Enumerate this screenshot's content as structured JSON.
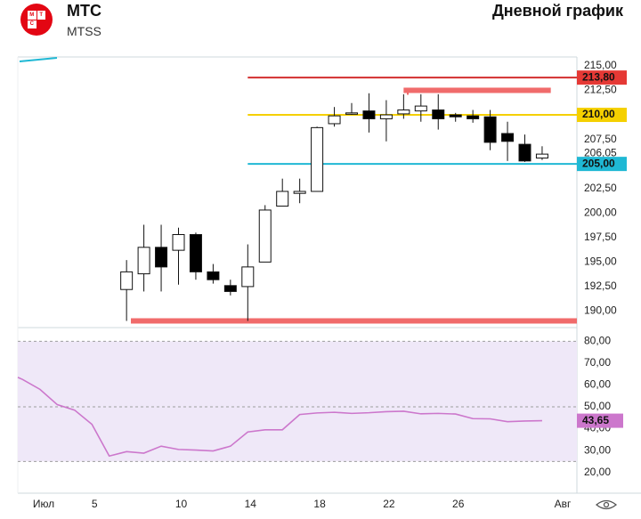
{
  "header": {
    "title": "МТС",
    "ticker": "MTSS",
    "headline": "Дневной график",
    "logo_letters": [
      "М",
      "Т",
      "С"
    ]
  },
  "colors": {
    "bull_candle": "#ffffff",
    "bear_candle": "#000000",
    "rsi_line": "#cc77cc",
    "rsi_band": "#efe8f8",
    "resistance_red": "#d32f2f",
    "highlight_red": "#f06b6b",
    "yellow_line": "#f5d000",
    "cyan_line": "#1fb8d4"
  },
  "chart_data": [
    {
      "type": "candlestick",
      "title": "",
      "ylim": [
        188.5,
        215.9
      ],
      "y_ticks": [
        "215,00",
        "212,50",
        "210,00",
        "207,50",
        "206,05",
        "205,00",
        "202,50",
        "200,00",
        "197,50",
        "195,00",
        "192,50",
        "190,00"
      ],
      "y_tick_values": [
        215.0,
        212.5,
        210.0,
        207.5,
        206.05,
        205.0,
        202.5,
        200.0,
        197.5,
        195.0,
        192.5,
        190.0
      ],
      "x_ticks": [
        "Июл",
        "5",
        "10",
        "14",
        "18",
        "22",
        "26",
        "Авг"
      ],
      "x_tick_days": [
        0,
        5,
        10,
        14,
        18,
        22,
        26,
        31
      ],
      "candles": [
        {
          "day": 7,
          "open": 192.2,
          "high": 195.2,
          "low": 189.0,
          "close": 194.0
        },
        {
          "day": 8,
          "open": 193.8,
          "high": 198.8,
          "low": 192.0,
          "close": 196.5
        },
        {
          "day": 9,
          "open": 196.5,
          "high": 198.8,
          "low": 192.0,
          "close": 194.5
        },
        {
          "day": 10,
          "open": 196.2,
          "high": 198.5,
          "low": 192.7,
          "close": 197.8
        },
        {
          "day": 11,
          "open": 197.8,
          "high": 198.0,
          "low": 193.2,
          "close": 194.0
        },
        {
          "day": 12,
          "open": 194.0,
          "high": 194.8,
          "low": 192.8,
          "close": 193.2
        },
        {
          "day": 13,
          "open": 192.6,
          "high": 193.2,
          "low": 191.6,
          "close": 192.0
        },
        {
          "day": 14,
          "open": 192.5,
          "high": 196.8,
          "low": 189.0,
          "close": 194.5
        },
        {
          "day": 15,
          "open": 195.0,
          "high": 200.8,
          "low": 195.0,
          "close": 200.3
        },
        {
          "day": 16,
          "open": 200.7,
          "high": 203.5,
          "low": 200.7,
          "close": 202.2
        },
        {
          "day": 17,
          "open": 202.0,
          "high": 203.5,
          "low": 201.0,
          "close": 202.2
        },
        {
          "day": 18,
          "open": 202.2,
          "high": 208.8,
          "low": 202.2,
          "close": 208.7
        },
        {
          "day": 19,
          "open": 209.1,
          "high": 210.8,
          "low": 208.8,
          "close": 209.9
        },
        {
          "day": 20,
          "open": 210.1,
          "high": 211.2,
          "low": 210.0,
          "close": 210.2
        },
        {
          "day": 21,
          "open": 210.4,
          "high": 212.2,
          "low": 208.2,
          "close": 209.6
        },
        {
          "day": 22,
          "open": 209.6,
          "high": 211.5,
          "low": 207.3,
          "close": 210.0
        },
        {
          "day": 23,
          "open": 210.1,
          "high": 212.1,
          "low": 209.6,
          "close": 210.5
        },
        {
          "day": 24,
          "open": 210.4,
          "high": 212.1,
          "low": 209.3,
          "close": 210.9
        },
        {
          "day": 25,
          "open": 210.5,
          "high": 212.1,
          "low": 208.5,
          "close": 209.6
        },
        {
          "day": 26,
          "open": 210.0,
          "high": 210.2,
          "low": 209.3,
          "close": 209.8
        },
        {
          "day": 27,
          "open": 209.9,
          "high": 210.5,
          "low": 209.2,
          "close": 209.6
        },
        {
          "day": 28,
          "open": 209.8,
          "high": 210.5,
          "low": 206.4,
          "close": 207.2
        },
        {
          "day": 29,
          "open": 208.1,
          "high": 209.3,
          "low": 205.3,
          "close": 207.3
        },
        {
          "day": 30,
          "open": 207.0,
          "high": 208.0,
          "low": 205.2,
          "close": 205.3
        },
        {
          "day": 31,
          "open": 205.6,
          "high": 206.8,
          "low": 205.4,
          "close": 206.0
        }
      ],
      "levels": [
        {
          "name": "213,80",
          "value": 213.8,
          "from_day": 14,
          "to_day": 32,
          "color": "#d32f2f",
          "tag_bg": "#e53935",
          "tag_fg": "#ffffff",
          "style": "line"
        },
        {
          "name": "210,00",
          "value": 210.0,
          "from_day": 14,
          "to_day": 32,
          "color": "#f5d000",
          "tag_bg": "#f5d000",
          "tag_fg": "#111111",
          "style": "line"
        },
        {
          "name": "205,00",
          "value": 205.0,
          "from_day": 14,
          "to_day": 32,
          "color": "#1fb8d4",
          "tag_bg": "#1fb8d4",
          "tag_fg": "#111111",
          "style": "line"
        },
        {
          "name": "",
          "value": 212.5,
          "from_day": 23,
          "to_day": 31.5,
          "color": "#f06b6b",
          "style": "band"
        },
        {
          "name": "",
          "value": 189.0,
          "from_day": 7,
          "to_day": 32,
          "color": "#f06b6b",
          "style": "band"
        }
      ]
    },
    {
      "type": "line",
      "title": "",
      "ylim": [
        17,
        83
      ],
      "y_ticks": [
        "80,00",
        "70,00",
        "60,00",
        "50,00",
        "40,00",
        "30,00",
        "20,00"
      ],
      "y_tick_values": [
        80,
        70,
        60,
        50,
        40,
        30,
        20
      ],
      "band": [
        25,
        80
      ],
      "midline": 50,
      "last_value_label": "43,65",
      "last_value": 43.65,
      "series": [
        {
          "x": [
            0,
            1,
            2,
            3,
            4,
            5,
            6,
            7,
            8,
            9,
            10,
            11,
            12,
            13,
            14,
            15,
            16,
            17,
            18,
            19,
            20,
            21,
            22,
            23,
            24,
            25,
            26,
            27,
            28,
            29,
            30,
            31
          ],
          "y": [
            63.5,
            62.5,
            58.0,
            51.0,
            48.5,
            42.0,
            27.5,
            29.5,
            28.8,
            32.0,
            30.5,
            30.2,
            29.8,
            32.0,
            38.5,
            39.5,
            39.5,
            46.5,
            47.2,
            47.5,
            47.0,
            47.3,
            47.8,
            48.0,
            46.8,
            47.0,
            46.7,
            44.6,
            44.5,
            43.2,
            43.5,
            43.65
          ]
        }
      ]
    }
  ]
}
